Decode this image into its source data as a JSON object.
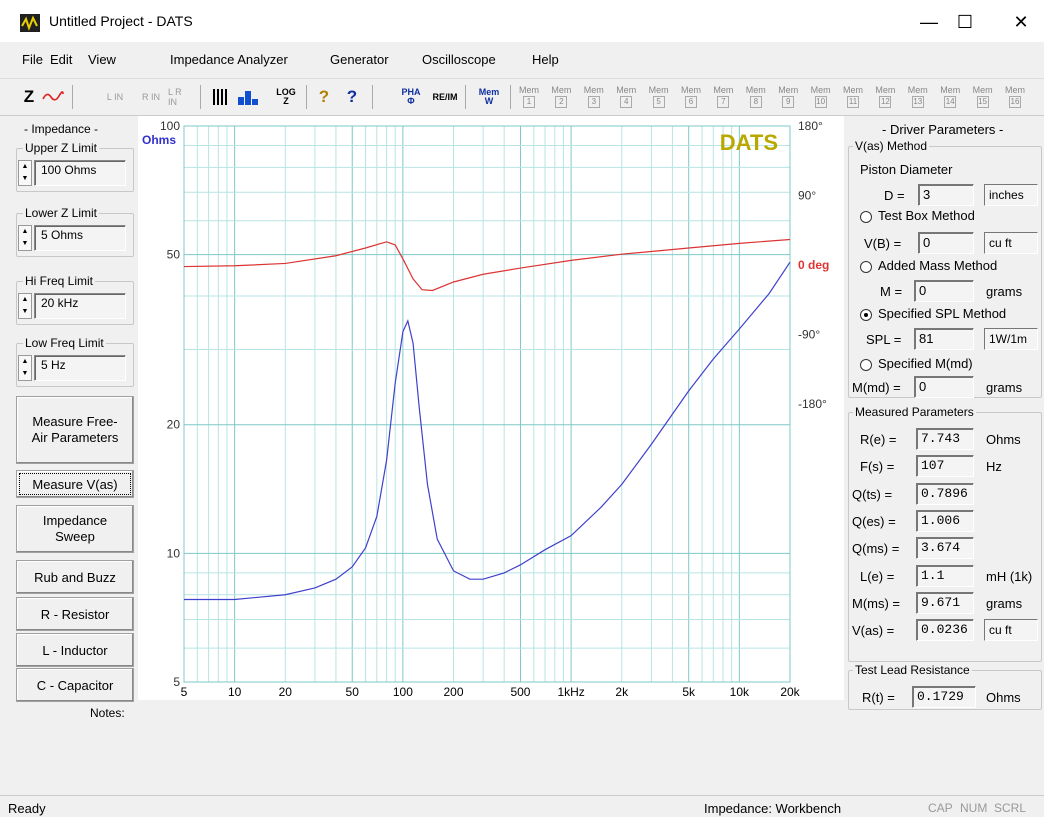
{
  "window": {
    "title": "Untitled Project - DATS",
    "minimize": "—",
    "maximize": "☐",
    "close": "✕"
  },
  "menu": [
    "File",
    "Edit",
    "View",
    "Impedance Analyzer",
    "Generator",
    "Oscilloscope",
    "Help"
  ],
  "toolbar": {
    "z": "Z",
    "l_in": "L IN",
    "r_in": "R IN",
    "lr_in": "L R IN",
    "help1": "?",
    "help2": "?",
    "log": "LOG Z",
    "pha": "PHA Φ",
    "re": "RE/IM",
    "mem": "Mem W",
    "mems": [
      "1",
      "2",
      "3",
      "4",
      "5",
      "6",
      "7",
      "8",
      "9",
      "10",
      "11",
      "12",
      "13",
      "14",
      "15",
      "16"
    ],
    "mem_label": "Mem"
  },
  "left": {
    "header": "- Impedance -",
    "upper_label": "Upper Z Limit",
    "upper_value": "100 Ohms",
    "lower_label": "Lower Z Limit",
    "lower_value": "5 Ohms",
    "hi_label": "Hi Freq Limit",
    "hi_value": "20 kHz",
    "low_label": "Low Freq Limit",
    "low_value": "5 Hz",
    "buttons": [
      "Measure Free-Air Parameters",
      "Measure V(as)",
      "Impedance Sweep",
      "Rub and Buzz",
      "R - Resistor",
      "L - Inductor",
      "C - Capacitor"
    ],
    "notes": "Notes:"
  },
  "chart_data": {
    "type": "line",
    "title": "DATS",
    "left_unit": "Ohms",
    "y_ticks": [
      "100",
      "50",
      "20",
      "10",
      "5"
    ],
    "right_ticks": [
      "180°",
      "90°",
      "0 deg",
      "-90°",
      "-180°"
    ],
    "x_ticks": [
      "5",
      "10",
      "20",
      "50",
      "100",
      "200",
      "500",
      "1kHz",
      "2k",
      "5k",
      "10k",
      "20k"
    ],
    "xlim": [
      5,
      20000
    ],
    "ylim": [
      5,
      100
    ],
    "phase_lim": [
      -180,
      180
    ],
    "log_x": true,
    "log_y": true,
    "series": [
      {
        "color": "#4040cc",
        "x": [
          5,
          10,
          20,
          30,
          40,
          50,
          60,
          70,
          80,
          90,
          100,
          107,
          115,
          125,
          140,
          160,
          200,
          250,
          300,
          400,
          500,
          700,
          1000,
          1500,
          2000,
          3000,
          5000,
          7000,
          10000,
          15000,
          20000
        ],
        "y": [
          7.8,
          7.8,
          8.0,
          8.3,
          8.7,
          9.3,
          10.3,
          12.2,
          16.5,
          25,
          33,
          35,
          31,
          22,
          14.5,
          10.8,
          9.1,
          8.7,
          8.7,
          9.0,
          9.4,
          10.2,
          11,
          12.8,
          14.5,
          18,
          24,
          28.5,
          33.5,
          40.5,
          48
        ]
      },
      {
        "color": "#dd3333",
        "x": [
          5,
          10,
          20,
          40,
          60,
          80,
          90,
          100,
          115,
          130,
          150,
          200,
          300,
          500,
          1000,
          2000,
          5000,
          10000,
          20000
        ],
        "y": [
          -2,
          -1,
          2,
          12,
          22,
          30,
          26,
          8,
          -18,
          -32,
          -33,
          -22,
          -12,
          -4,
          6,
          14,
          22,
          28,
          33
        ]
      }
    ]
  },
  "right": {
    "header": "- Driver Parameters -",
    "vas_method": "V(as) Method",
    "piston": "Piston Diameter",
    "d_label": "D =",
    "d_value": "3",
    "d_unit": "inches",
    "test_box": "Test Box Method",
    "vb_label": "V(B) =",
    "vb_value": "0",
    "vb_unit": "cu ft",
    "added_mass": "Added Mass Method",
    "m_label": "M =",
    "m_value": "0",
    "m_unit": "grams",
    "spl_method": "Specified SPL Method",
    "spl_label": "SPL =",
    "spl_value": "81",
    "spl_unit": "1W/1m",
    "mmd_method": "Specified M(md)",
    "mmd_label": "M(md) =",
    "mmd_value": "0",
    "mmd_unit": "grams",
    "measured": "Measured Parameters",
    "params": [
      {
        "label": "R(e) =",
        "value": "7.743",
        "unit": "Ohms"
      },
      {
        "label": "F(s) =",
        "value": "107",
        "unit": "Hz"
      },
      {
        "label": "Q(ts) =",
        "value": "0.7896",
        "unit": ""
      },
      {
        "label": "Q(es) =",
        "value": "1.006",
        "unit": ""
      },
      {
        "label": "Q(ms) =",
        "value": "3.674",
        "unit": ""
      },
      {
        "label": "L(e) =",
        "value": "1.1",
        "unit": "mH (1k)"
      },
      {
        "label": "M(ms) =",
        "value": "9.671",
        "unit": "grams"
      },
      {
        "label": "V(as) =",
        "value": "0.0236",
        "unit": "cu ft"
      }
    ],
    "test_lead": "Test Lead Resistance",
    "rt_label": "R(t) =",
    "rt_value": "0.1729",
    "rt_unit": "Ohms"
  },
  "status": {
    "left": "Ready",
    "mid": "Impedance: Workbench",
    "cap": "CAP",
    "num": "NUM",
    "scrl": "SCRL"
  }
}
